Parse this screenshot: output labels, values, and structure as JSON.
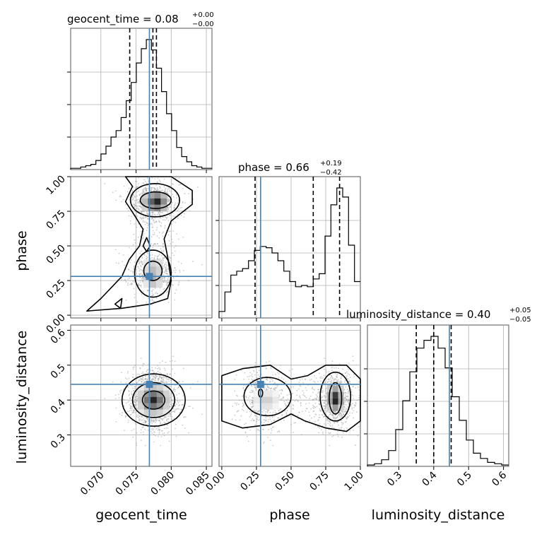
{
  "chart_data": {
    "type": "corner",
    "parameters": [
      "geocent_time",
      "phase",
      "luminosity_distance"
    ],
    "titles": [
      {
        "param": "geocent_time",
        "text": "geocent_time = 0.08",
        "sup": "+0.00",
        "sub": "−0.00"
      },
      {
        "param": "phase",
        "text": "phase = 0.66",
        "sup": "+0.19",
        "sub": "−0.42"
      },
      {
        "param": "luminosity_distance",
        "text": "luminosity_distance = 0.40",
        "sup": "+0.05",
        "sub": "−0.05"
      }
    ],
    "axis_labels": [
      "geocent_time",
      "phase",
      "luminosity_distance"
    ],
    "ranges": {
      "geocent_time": [
        0.0657,
        0.0858
      ],
      "phase": [
        -0.02,
        1.0
      ],
      "luminosity_distance": [
        0.21,
        0.615
      ]
    },
    "ticks": {
      "geocent_time": [
        "0.070",
        "0.075",
        "0.080",
        "0.085"
      ],
      "phase": [
        "0.00",
        "0.25",
        "0.50",
        "0.75",
        "1.00"
      ],
      "luminosity_distance_x": [
        "0.3",
        "0.4",
        "0.5",
        "0.6"
      ],
      "luminosity_distance_y": [
        "0.3",
        "0.4",
        "0.5",
        "0.6"
      ]
    },
    "truths": {
      "geocent_time": 0.0769,
      "phase": 0.28,
      "luminosity_distance": 0.445
    },
    "quantiles": {
      "geocent_time": [
        0.0741,
        0.0779
      ],
      "phase": [
        0.24,
        0.85
      ],
      "luminosity_distance": [
        0.35,
        0.45
      ]
    },
    "medians": {
      "geocent_time": 0.0774,
      "phase": 0.66,
      "luminosity_distance": 0.4
    },
    "histograms": {
      "geocent_time": [
        1,
        1,
        2,
        3,
        4,
        7,
        12,
        18,
        25,
        30,
        40,
        53,
        67,
        82,
        93,
        100,
        92,
        78,
        60,
        43,
        30,
        17,
        10,
        6,
        3,
        2,
        1,
        1
      ],
      "phase": [
        5,
        20,
        33,
        36,
        38,
        44,
        52,
        55,
        54,
        50,
        44,
        36,
        28,
        24,
        25,
        24,
        30,
        34,
        63,
        87,
        100,
        93,
        56,
        28
      ],
      "luminosity_distance": [
        1,
        2,
        5,
        12,
        28,
        50,
        72,
        90,
        96,
        99,
        90,
        75,
        53,
        35,
        20,
        10,
        6,
        3,
        2,
        1
      ]
    },
    "color_truth": "#4682b4",
    "grid": true
  }
}
